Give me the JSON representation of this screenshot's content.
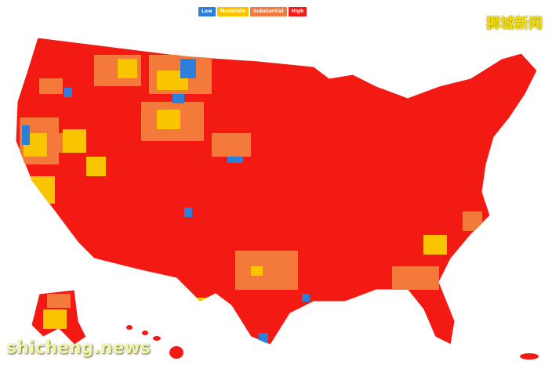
{
  "legend": [
    {
      "label": "Low",
      "color": "#2d7fdc"
    },
    {
      "label": "Moderate",
      "color": "#f9c400"
    },
    {
      "label": "Substantial",
      "color": "#f47a3c"
    },
    {
      "label": "High",
      "color": "#f21a12"
    }
  ],
  "watermarks": {
    "top_right": "狮城新闻",
    "bottom_left": "shicheng.news"
  }
}
